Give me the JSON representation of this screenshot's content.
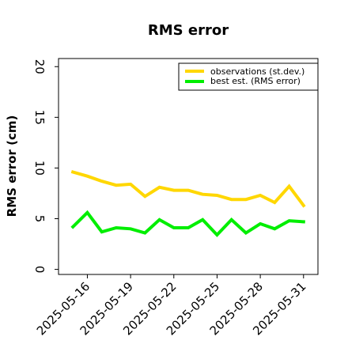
{
  "chart_data": {
    "type": "line",
    "title": "RMS error",
    "ylabel": "RMS error (cm)",
    "xlabel": "",
    "ylim": [
      -0.5,
      20.8
    ],
    "xlim": [
      "2025-05-14",
      "2025-06-01"
    ],
    "yticks": [
      0,
      5,
      10,
      15,
      20
    ],
    "xticks": [
      "2025-05-16",
      "2025-05-19",
      "2025-05-22",
      "2025-05-25",
      "2025-05-28",
      "2025-05-31"
    ],
    "highlight_tick": "2025-05-22",
    "highlight_color": "#228b22",
    "grid": false,
    "legend_position": "top-right",
    "x": [
      "2025-05-15",
      "2025-05-16",
      "2025-05-17",
      "2025-05-18",
      "2025-05-19",
      "2025-05-20",
      "2025-05-21",
      "2025-05-22",
      "2025-05-23",
      "2025-05-24",
      "2025-05-25",
      "2025-05-26",
      "2025-05-27",
      "2025-05-28",
      "2025-05-29",
      "2025-05-30",
      "2025-05-31"
    ],
    "series": [
      {
        "name": "observations (st.dev.)",
        "color": "#ffd700",
        "values": [
          9.6,
          9.2,
          8.7,
          8.3,
          8.4,
          7.2,
          8.1,
          7.8,
          7.8,
          7.4,
          7.3,
          6.9,
          6.9,
          7.3,
          6.6,
          8.2,
          6.3
        ]
      },
      {
        "name": "best est. (RMS error)",
        "color": "#00ee00",
        "values": [
          4.2,
          5.6,
          3.7,
          4.1,
          4.0,
          3.6,
          4.9,
          4.1,
          4.1,
          4.9,
          3.4,
          4.9,
          3.6,
          4.5,
          4.0,
          4.8,
          4.7
        ]
      }
    ]
  }
}
